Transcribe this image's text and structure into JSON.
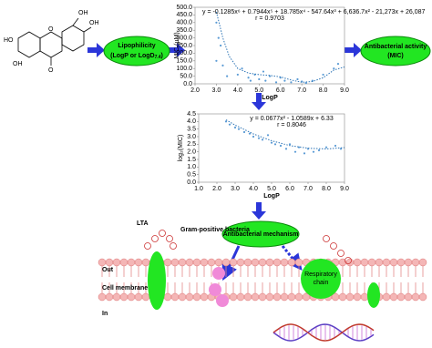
{
  "molecule": {
    "labels": [
      "OH",
      "OH",
      "HO",
      "OH",
      "O",
      "O"
    ]
  },
  "lipophilicity": {
    "title": "Lipophilicity",
    "detail": "(LogP or LogD",
    "subscript": "7.4",
    "close": ")"
  },
  "activity": {
    "title": "Antibacterial activity",
    "detail": "(MIC)"
  },
  "mechanism": {
    "title": "Antibacterial mechanism"
  },
  "membrane": {
    "lta": "LTA",
    "bacteria": "Gram-positive bacteria",
    "out": "Out",
    "cell_membrane": "Cell membrane",
    "in": "In",
    "respiratory": [
      "Respiratory",
      "chain"
    ]
  },
  "charts": [
    {
      "type": "scatter",
      "equation": "y = -0.1285x⁶ + 0.7944x⁵ + 18.785x⁴ - 547.64x³ + 6,636.7x² - 21,273x + 26,087",
      "r": "r = 0.9703",
      "xlabel": "LogP",
      "ylabel": "MIC (μM)",
      "color": "#5b9bd5",
      "x": [
        3.0,
        3.1,
        3.2,
        3.0,
        3.3,
        3.5,
        4.0,
        4.2,
        4.5,
        4.6,
        4.8,
        5.0,
        5.2,
        5.3,
        5.5,
        5.8,
        6.0,
        6.2,
        6.5,
        6.8,
        7.0,
        7.2,
        7.5,
        8.0,
        8.5,
        8.7
      ],
      "y": [
        400,
        300,
        250,
        150,
        120,
        50,
        60,
        100,
        40,
        20,
        60,
        30,
        80,
        20,
        50,
        10,
        40,
        20,
        10,
        30,
        15,
        5,
        20,
        60,
        100,
        130
      ],
      "trend": {
        "x": [
          3.0,
          3.3,
          3.6,
          4.0,
          4.5,
          5.0,
          5.5,
          6.0,
          6.5,
          7.0,
          7.5,
          8.0,
          8.5,
          9.0
        ],
        "y": [
          470,
          300,
          180,
          100,
          70,
          60,
          55,
          45,
          25,
          10,
          15,
          40,
          90,
          110
        ]
      },
      "xlim": [
        2,
        9
      ],
      "ylim": [
        0,
        500
      ],
      "xticks": [
        {
          "value": 2,
          "label": "2.0"
        },
        {
          "value": 3,
          "label": "3.0"
        },
        {
          "value": 4,
          "label": "4.0"
        },
        {
          "value": 5,
          "label": "5.0"
        },
        {
          "value": 6,
          "label": "6.0"
        },
        {
          "value": 7,
          "label": "7.0"
        },
        {
          "value": 8,
          "label": "8.0"
        },
        {
          "value": 9,
          "label": "9.0"
        }
      ],
      "yticks": [
        {
          "value": 0,
          "label": "0.0"
        },
        {
          "value": 50,
          "label": "50.0"
        },
        {
          "value": 100,
          "label": "100.0"
        },
        {
          "value": 150,
          "label": "150.0"
        },
        {
          "value": 200,
          "label": "200.0"
        },
        {
          "value": 250,
          "label": "250.0"
        },
        {
          "value": 300,
          "label": "300.0"
        },
        {
          "value": 350,
          "label": "350.0"
        },
        {
          "value": 400,
          "label": "400.0"
        },
        {
          "value": 450,
          "label": "450.0"
        },
        {
          "value": 500,
          "label": "500.0"
        }
      ]
    },
    {
      "type": "scatter",
      "equation": "y = 0.0677x² - 1.0589x + 6.33",
      "r": "r = 0.8046",
      "xlabel": "LogP",
      "ylabel": "log₂(MIC)",
      "color": "#5b9bd5",
      "x": [
        2.5,
        2.7,
        3.0,
        3.2,
        3.5,
        3.8,
        4.0,
        4.3,
        4.5,
        4.8,
        5.0,
        5.2,
        5.5,
        5.8,
        6.0,
        6.3,
        6.5,
        6.8,
        7.0,
        7.3,
        7.6,
        8.0,
        8.5,
        8.8
      ],
      "y": [
        4.0,
        3.8,
        3.6,
        3.5,
        3.3,
        3.2,
        3.0,
        2.9,
        2.8,
        3.1,
        2.6,
        2.5,
        2.4,
        2.2,
        2.5,
        2.0,
        2.3,
        1.9,
        2.2,
        2.0,
        2.1,
        2.3,
        2.4,
        2.2
      ],
      "trend": {
        "x": [
          2.5,
          3,
          4,
          5,
          6,
          7,
          8,
          9
        ],
        "y": [
          4.11,
          3.76,
          3.18,
          2.73,
          2.41,
          2.24,
          2.19,
          2.28
        ]
      },
      "xlim": [
        1,
        9
      ],
      "ylim": [
        0,
        4.5
      ],
      "xticks": [
        {
          "value": 1,
          "label": "1.0"
        },
        {
          "value": 2,
          "label": "2.0"
        },
        {
          "value": 3,
          "label": "3.0"
        },
        {
          "value": 4,
          "label": "4.0"
        },
        {
          "value": 5,
          "label": "5.0"
        },
        {
          "value": 6,
          "label": "6.0"
        },
        {
          "value": 7,
          "label": "7.0"
        },
        {
          "value": 8,
          "label": "8.0"
        },
        {
          "value": 9,
          "label": "9.0"
        }
      ],
      "yticks": [
        {
          "value": 0,
          "label": "0.0"
        },
        {
          "value": 0.5,
          "label": "0.5"
        },
        {
          "value": 1,
          "label": "1.0"
        },
        {
          "value": 1.5,
          "label": "1.5"
        },
        {
          "value": 2,
          "label": "2.0"
        },
        {
          "value": 2.5,
          "label": "2.5"
        },
        {
          "value": 3,
          "label": "3.0"
        },
        {
          "value": 3.5,
          "label": "3.5"
        },
        {
          "value": 4,
          "label": "4.0"
        },
        {
          "value": 4.5,
          "label": "4.5"
        }
      ]
    }
  ]
}
